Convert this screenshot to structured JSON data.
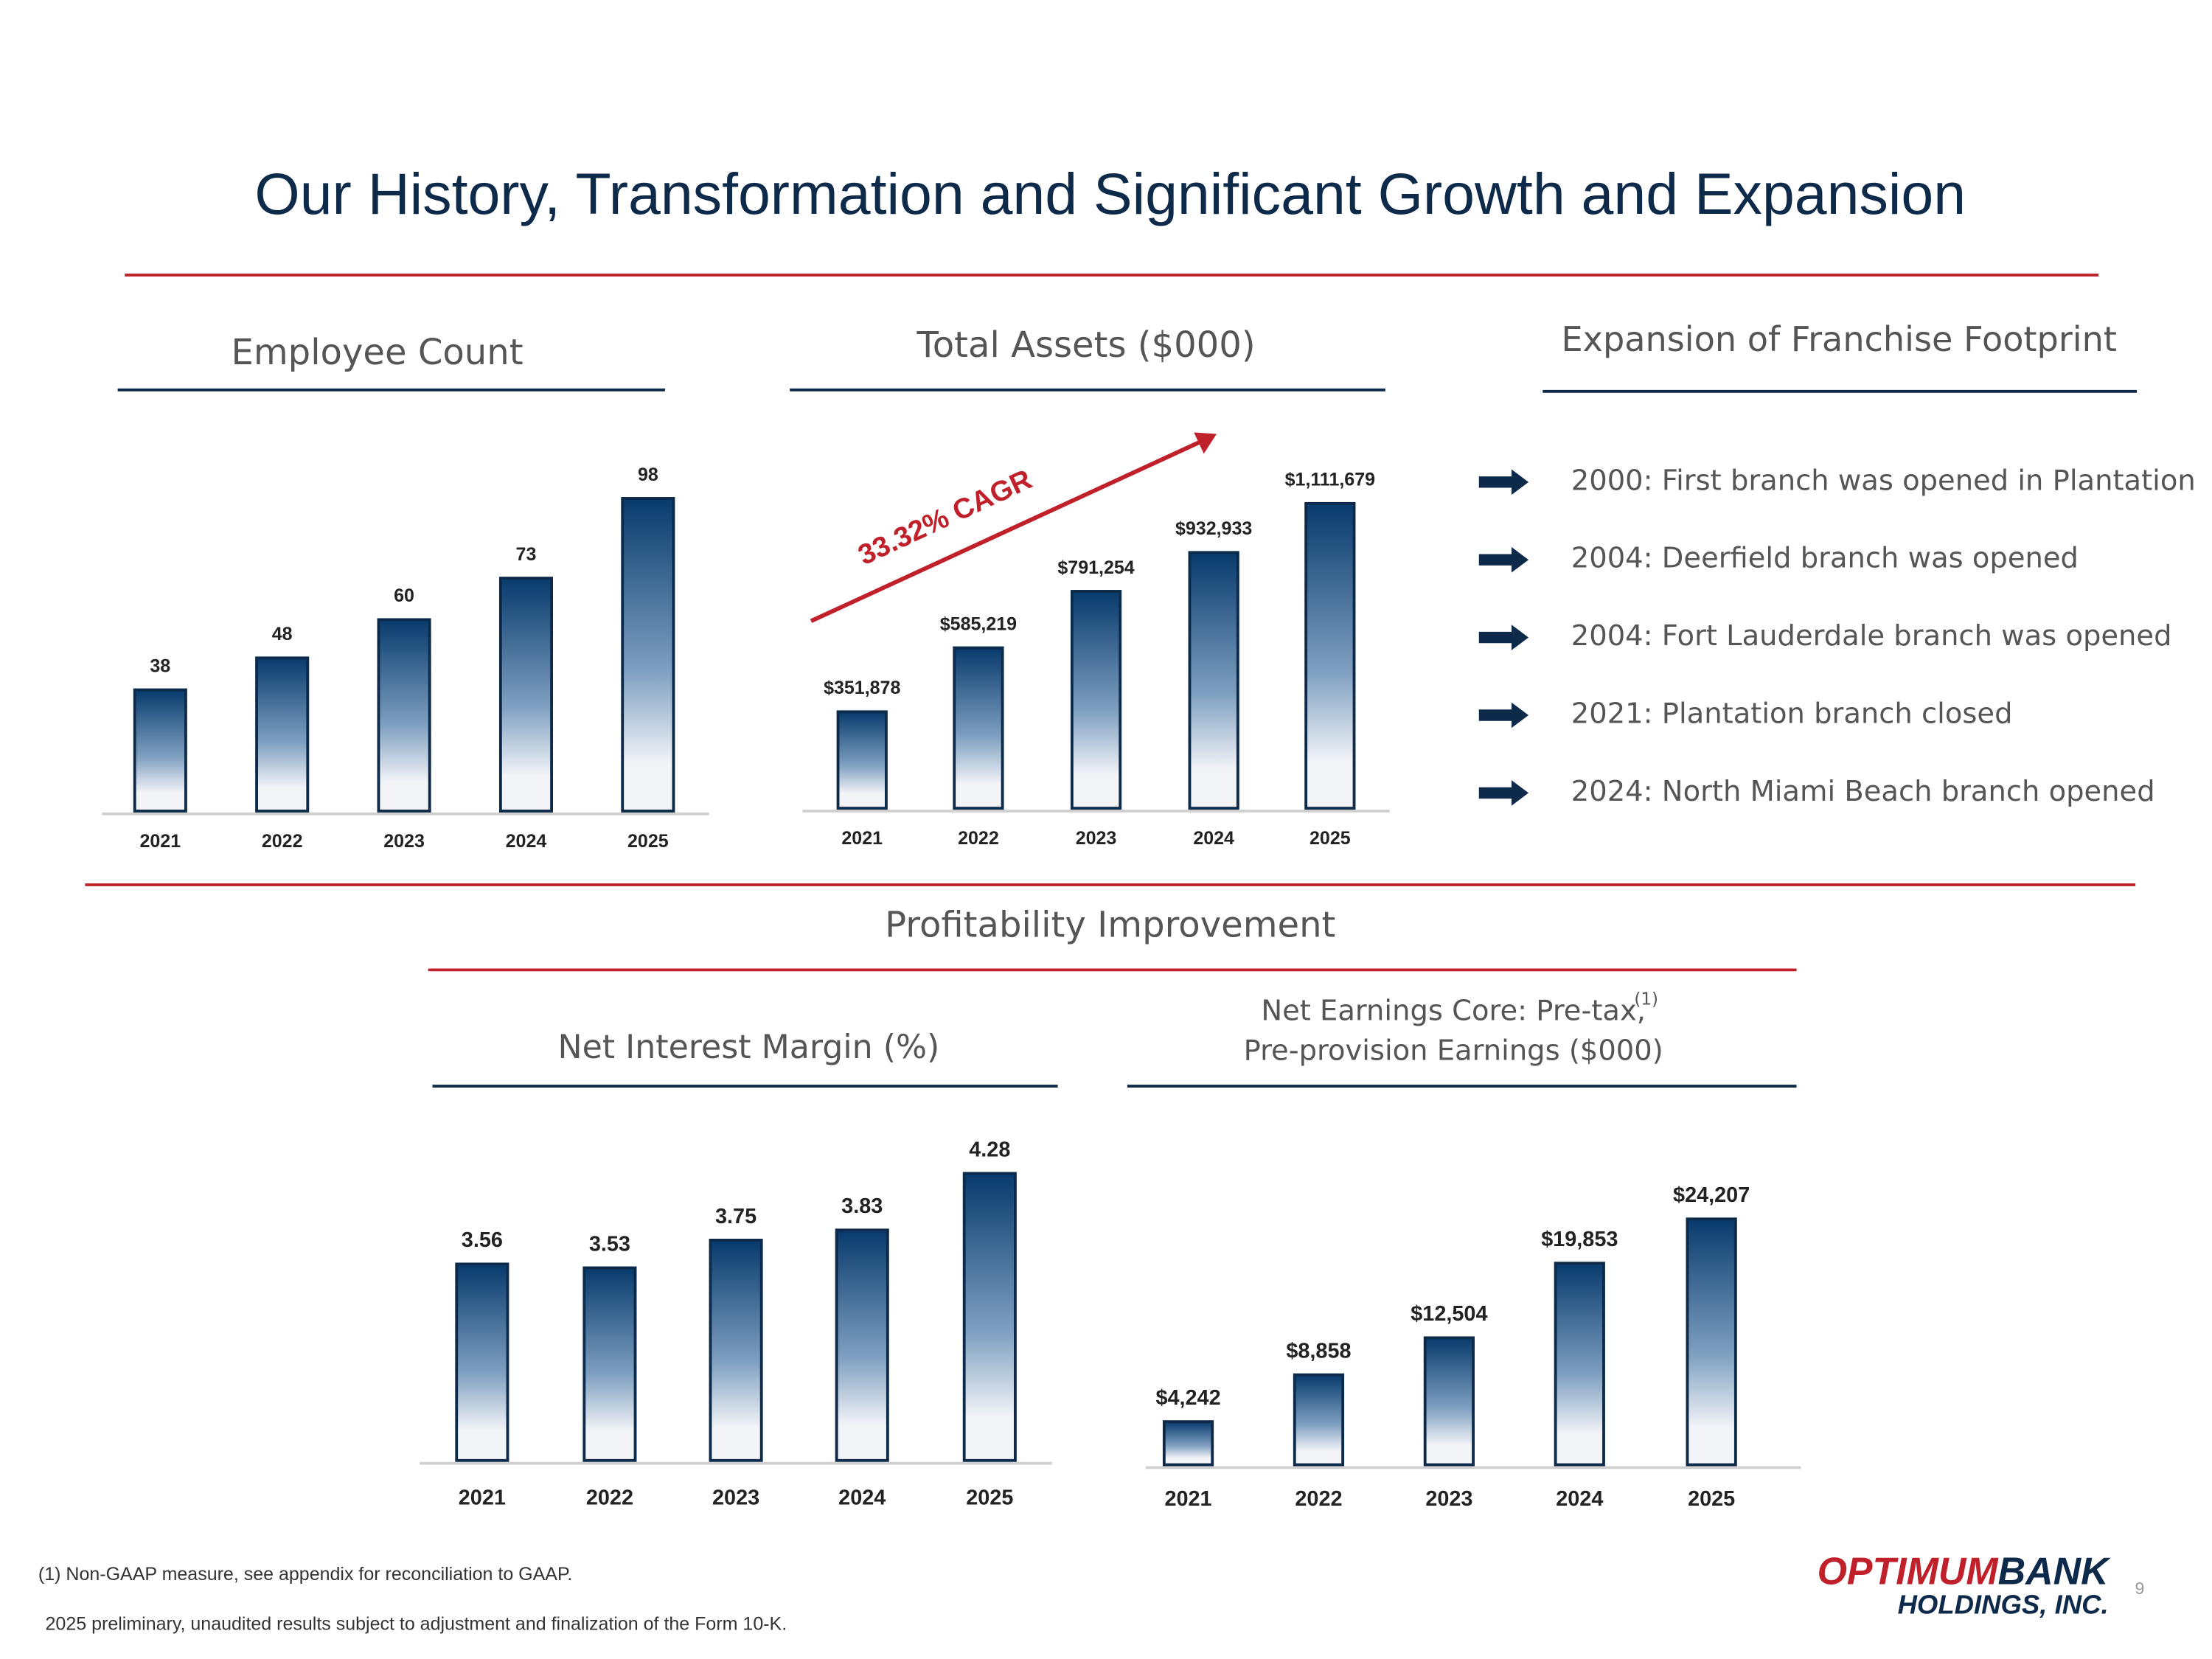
{
  "title": "Our History, Transformation and Significant Growth and Expansion",
  "chart_data": [
    {
      "type": "bar",
      "title": "Employee Count",
      "categories": [
        "2021",
        "2022",
        "2023",
        "2024",
        "2025"
      ],
      "values": [
        38,
        48,
        60,
        73,
        98
      ],
      "ylim": [
        0,
        100
      ],
      "color": "#083a6e"
    },
    {
      "type": "bar",
      "title": "Total Assets ($000)",
      "categories": [
        "2021",
        "2022",
        "2023",
        "2024",
        "2025"
      ],
      "values": [
        351878,
        585219,
        791254,
        932933,
        1111679
      ],
      "value_labels": [
        "$351,878",
        "$585,219",
        "$791,254",
        "$932,933",
        "$1,111,679"
      ],
      "ylim": [
        0,
        1200000
      ],
      "annotation": "33.32% CAGR",
      "color": "#083a6e"
    },
    {
      "type": "bar",
      "title": "Net Interest Margin (%)",
      "categories": [
        "2021",
        "2022",
        "2023",
        "2024",
        "2025"
      ],
      "values": [
        3.56,
        3.53,
        3.75,
        3.83,
        4.28
      ],
      "ylim": [
        2,
        4.5
      ],
      "color": "#083a6e"
    },
    {
      "type": "bar",
      "title": [
        "Net Earnings Core: Pre-tax,",
        "Pre-provision Earnings ($000)"
      ],
      "title_note": "(1)",
      "categories": [
        "2021",
        "2022",
        "2023",
        "2024",
        "2025"
      ],
      "values": [
        4242,
        8858,
        12504,
        19853,
        24207
      ],
      "value_labels": [
        "$4,242",
        "$8,858",
        "$12,504",
        "$19,853",
        "$24,207"
      ],
      "ylim": [
        0,
        25000
      ],
      "color": "#083a6e"
    }
  ],
  "footprint": {
    "title": "Expansion of Franchise Footprint",
    "items": [
      "2000: First branch was opened in Plantation",
      "2004: Deerfield branch was opened",
      "2004: Fort Lauderdale branch was opened",
      "2021: Plantation branch closed",
      "2024: North Miami Beach branch opened"
    ]
  },
  "section_title": "Profitability Improvement",
  "footnotes": [
    "(1)  Non-GAAP measure, see appendix for reconciliation to GAAP.",
    "2025 preliminary, unaudited results subject to adjustment and finalization of the Form 10-K."
  ],
  "logo": {
    "part1": "OPTIMUM",
    "part2": "BANK",
    "line2": "HOLDINGS, INC."
  },
  "page_number": "9"
}
